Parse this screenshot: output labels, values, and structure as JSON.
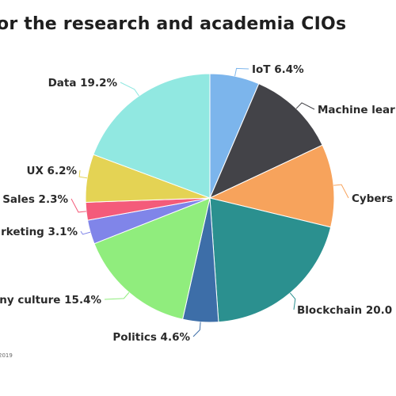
{
  "title": "or the research and academia CIOs",
  "footer": "2019",
  "chart_data": {
    "type": "pie",
    "title": "or the research and academia CIOs",
    "slices": [
      {
        "label": "IoT 6.4%",
        "value": 6.4,
        "color": "#7cb5ec"
      },
      {
        "label": "Machine lear",
        "value": 11.5,
        "color": "#434348"
      },
      {
        "label": "Cybers",
        "value": 10.7,
        "color": "#f7a35c"
      },
      {
        "label": "Blockchain 20.0",
        "value": 20.0,
        "color": "#2b908f"
      },
      {
        "label": "Politics 4.6%",
        "value": 4.6,
        "color": "#3d6ea8"
      },
      {
        "label": "pany culture 15.4%",
        "value": 15.4,
        "color": "#90ed7d"
      },
      {
        "label": "rketing 3.1%",
        "value": 3.1,
        "color": "#8085e9"
      },
      {
        "label": "Sales 2.3%",
        "value": 2.3,
        "color": "#f45b7a"
      },
      {
        "label": "UX 6.2%",
        "value": 6.2,
        "color": "#e4d354"
      },
      {
        "label": "Data 19.2%",
        "value": 19.2,
        "color": "#91e8e1"
      }
    ]
  }
}
